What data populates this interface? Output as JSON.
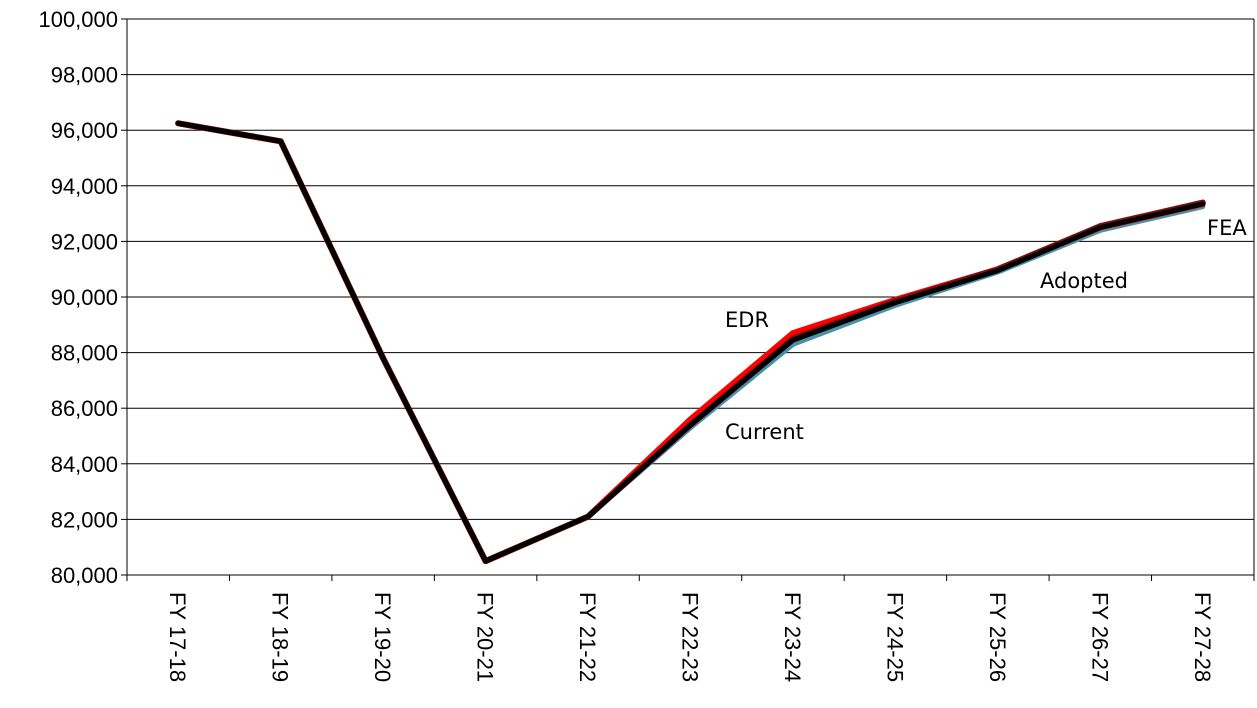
{
  "chart_data": {
    "type": "line",
    "title": "",
    "xlabel": "",
    "ylabel": "",
    "categories": [
      "FY 17-18",
      "FY 18-19",
      "FY 19-20",
      "FY 20-21",
      "FY 21-22",
      "FY 22-23",
      "FY 23-24",
      "FY 24-25",
      "FY 25-26",
      "FY 26-27",
      "FY 27-28"
    ],
    "ylim": [
      80000,
      100000
    ],
    "yticks": [
      80000,
      82000,
      84000,
      86000,
      88000,
      90000,
      92000,
      94000,
      96000,
      98000,
      100000
    ],
    "ytick_labels": [
      "80,000",
      "82,000",
      "84,000",
      "86,000",
      "88,000",
      "90,000",
      "92,000",
      "94,000",
      "96,000",
      "98,000",
      "100,000"
    ],
    "grid": true,
    "series": [
      {
        "name": "Adopted",
        "color": "#4a90a8",
        "values": [
          96250,
          95600,
          87800,
          80500,
          82100,
          85300,
          88300,
          89700,
          90900,
          92400,
          93250
        ]
      },
      {
        "name": "EDR",
        "color": "#ff0000",
        "values": [
          96250,
          95600,
          87800,
          80500,
          82100,
          85600,
          88700,
          89900,
          91000,
          92500,
          93350
        ]
      },
      {
        "name": "FEA",
        "color": "#7a1010",
        "values": [
          96250,
          95600,
          87800,
          80500,
          82100,
          85400,
          88500,
          89850,
          91000,
          92550,
          93400
        ]
      },
      {
        "name": "Current",
        "color": "#000000",
        "values": [
          96250,
          95600,
          87800,
          80500,
          82100,
          85400,
          88450,
          89800,
          90950,
          92500,
          93350
        ]
      }
    ]
  }
}
